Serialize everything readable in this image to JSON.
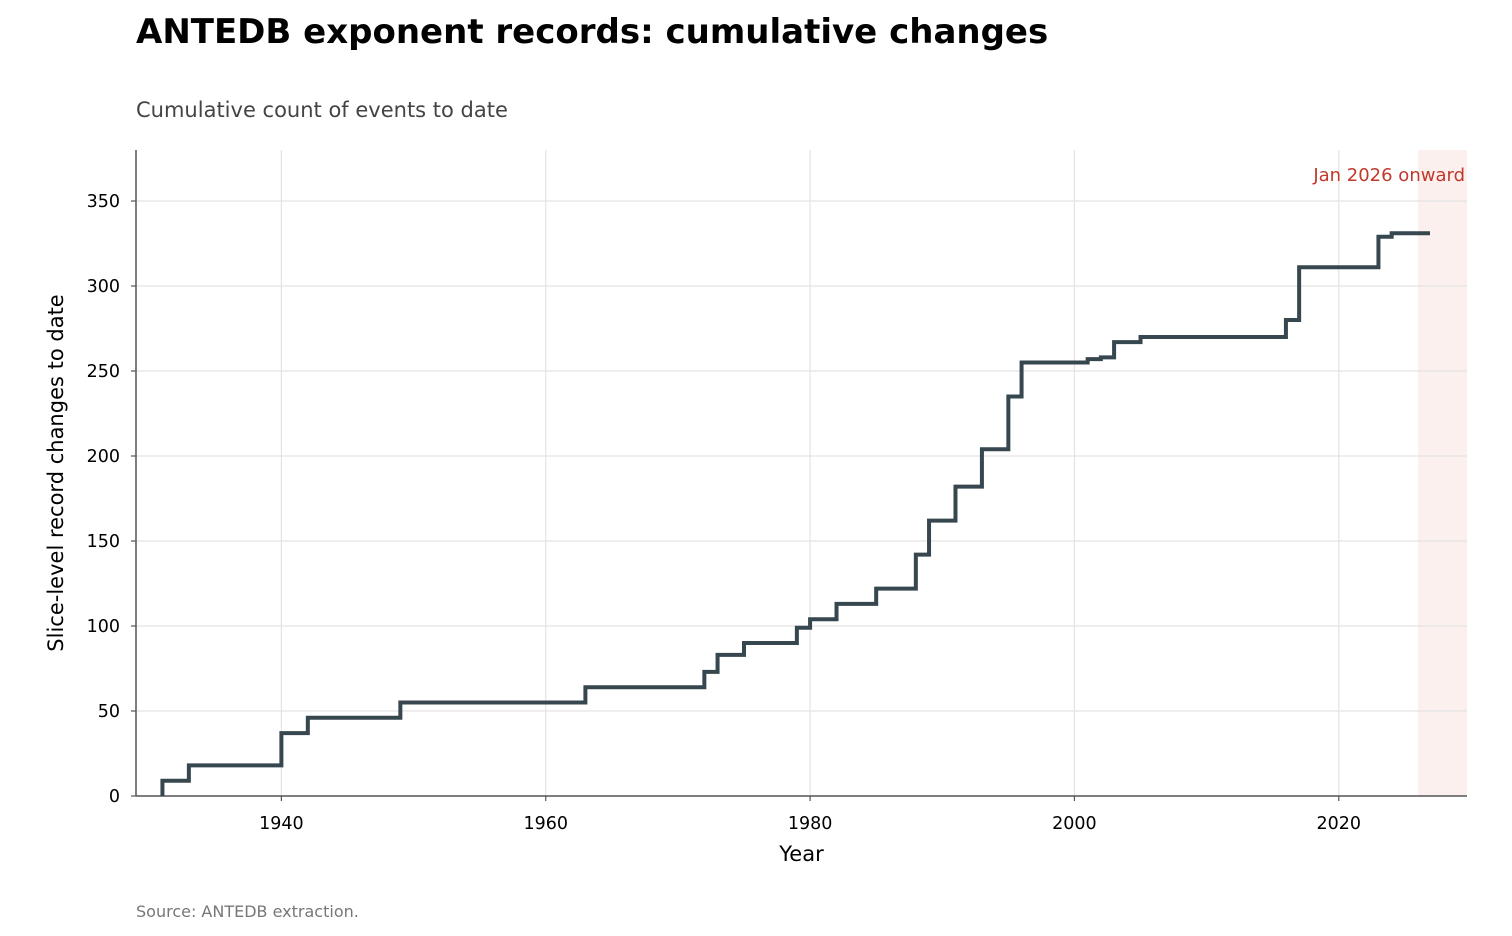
{
  "header": {
    "title": "ANTEDB exponent records: cumulative changes",
    "subtitle": "Cumulative count of events to date"
  },
  "footer": {
    "source": "Source: ANTEDB extraction."
  },
  "colors": {
    "line": "#37474f",
    "grid": "#e3e3e3",
    "axis": "#555555",
    "shade": "#fbf0ee",
    "annotation": "#c0392b"
  },
  "chart_data": {
    "type": "line",
    "step": "post",
    "xlabel": "Year",
    "ylabel": "Slice-level record changes to date",
    "xlim": [
      1929,
      2029.7
    ],
    "ylim": [
      0,
      380
    ],
    "xticks": [
      1940,
      1960,
      1980,
      2000,
      2020
    ],
    "yticks": [
      0,
      50,
      100,
      150,
      200,
      250,
      300,
      350
    ],
    "grid": true,
    "series": [
      {
        "x": [
          1931,
          1933,
          1940,
          1942,
          1949,
          1963,
          1972,
          1973,
          1975,
          1979,
          1980,
          1982,
          1985,
          1988,
          1989,
          1991,
          1993,
          1995,
          1996,
          2001,
          2002,
          2003,
          2005,
          2016,
          2017,
          2023,
          2024,
          2026.9
        ],
        "y": [
          9,
          18,
          37,
          46,
          55,
          64,
          73,
          83,
          90,
          99,
          104,
          113,
          122,
          142,
          162,
          182,
          204,
          235,
          255,
          257,
          258,
          267,
          270,
          280,
          311,
          329,
          331,
          331
        ]
      }
    ],
    "shaded_region": {
      "x_start": 2026,
      "label": "Jan 2026 onward"
    }
  }
}
